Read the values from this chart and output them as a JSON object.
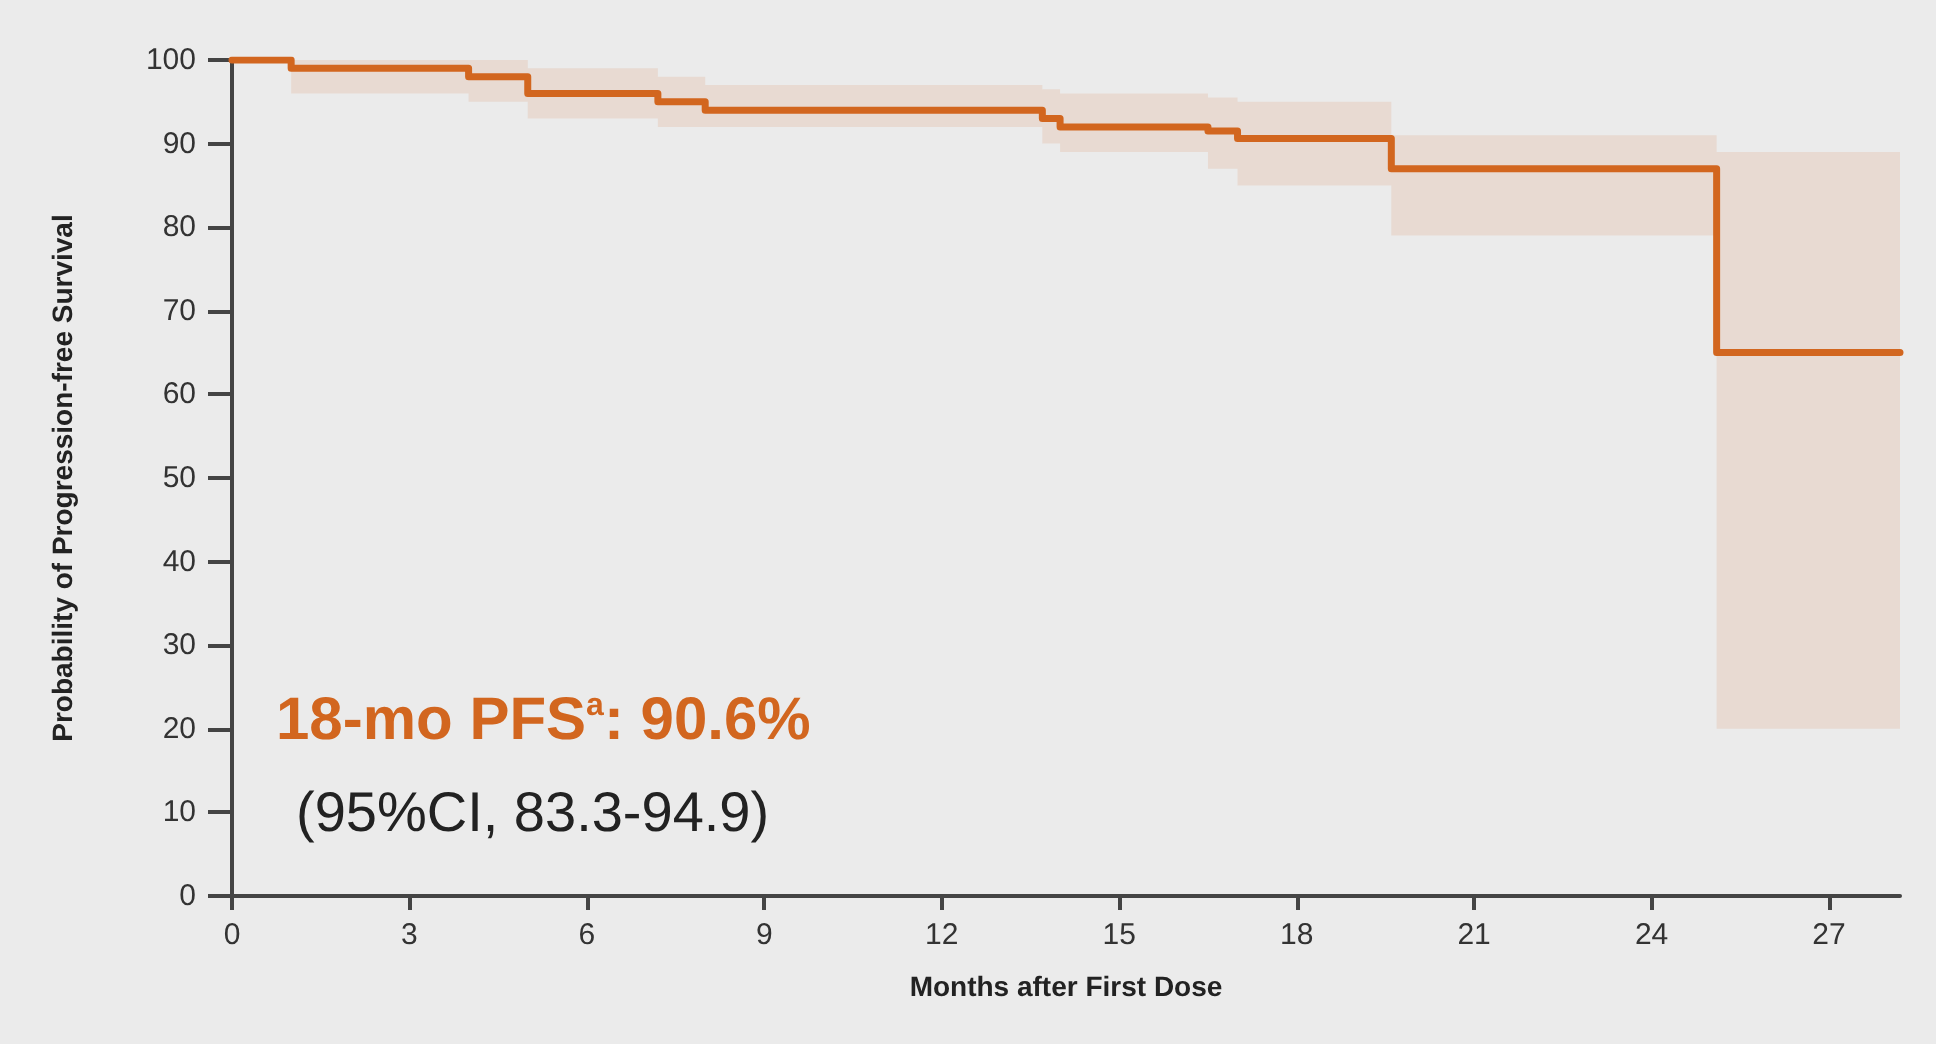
{
  "chart_data": {
    "type": "step",
    "xlabel": "Months after First Dose",
    "ylabel": "Probability of Progression-free Survival",
    "x": [
      0,
      1,
      4,
      5,
      7.2,
      8,
      13.7,
      14,
      16.5,
      17,
      19.6,
      25.1,
      28.2
    ],
    "series": [
      {
        "color": "#d2661f",
        "values": [
          100,
          99,
          98,
          96,
          95,
          94,
          93,
          92,
          91.5,
          90.6,
          87,
          65,
          65
        ],
        "lower": [
          100,
          96,
          95,
          93,
          92,
          92,
          90,
          89,
          87,
          85,
          79,
          20,
          20
        ],
        "upper": [
          100,
          100,
          100,
          99,
          98,
          97,
          96.5,
          96,
          95.5,
          95,
          91,
          89,
          89
        ]
      }
    ],
    "xlim": [
      0,
      28.2
    ],
    "xticks": [
      0,
      3,
      6,
      9,
      12,
      15,
      18,
      21,
      24,
      27
    ],
    "ylim": [
      0,
      100
    ],
    "yticks": [
      0,
      10,
      20,
      30,
      40,
      50,
      60,
      70,
      80,
      90,
      100
    ],
    "grid": false,
    "marker": "none",
    "line_style": "solid",
    "annotations": [
      "18-mo PFS$^{a}$: 90.6%",
      "(95%CI, 83.3-94.9)"
    ]
  }
}
